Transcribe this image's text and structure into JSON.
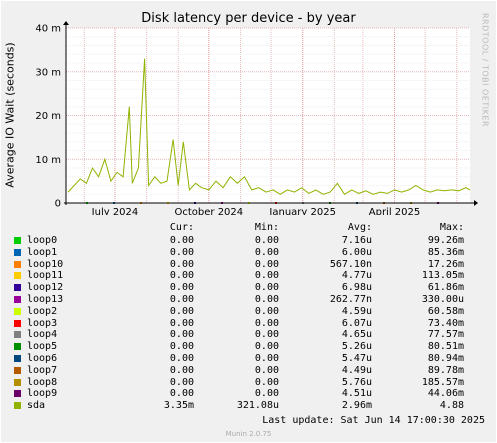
{
  "chart_data": {
    "type": "line",
    "title": "Disk latency per device - by year",
    "ylabel": "Average IO Wait (seconds)",
    "ylim": [
      0,
      0.04
    ],
    "yticks": [
      {
        "value": 0,
        "label": "0"
      },
      {
        "value": 0.01,
        "label": "10 m"
      },
      {
        "value": 0.02,
        "label": "20 m"
      },
      {
        "value": 0.03,
        "label": "30 m"
      },
      {
        "value": 0.04,
        "label": "40 m"
      }
    ],
    "x_range": [
      "2024-05-14",
      "2025-06-14"
    ],
    "xticks": [
      {
        "date": "2024-07-01",
        "label": "July 2024"
      },
      {
        "date": "2024-10-01",
        "label": "October 2024"
      },
      {
        "date": "2025-01-01",
        "label": "January 2025"
      },
      {
        "date": "2025-04-01",
        "label": "April 2025"
      }
    ],
    "grid": true,
    "sda_series": {
      "name": "sda",
      "points": [
        [
          "2024-05-16",
          0.0025
        ],
        [
          "2024-05-22",
          0.004
        ],
        [
          "2024-05-28",
          0.0055
        ],
        [
          "2024-06-03",
          0.0045
        ],
        [
          "2024-06-09",
          0.008
        ],
        [
          "2024-06-15",
          0.006
        ],
        [
          "2024-06-21",
          0.01
        ],
        [
          "2024-06-27",
          0.005
        ],
        [
          "2024-07-03",
          0.007
        ],
        [
          "2024-07-09",
          0.006
        ],
        [
          "2024-07-15",
          0.022
        ],
        [
          "2024-07-18",
          0.0045
        ],
        [
          "2024-07-24",
          0.008
        ],
        [
          "2024-07-30",
          0.033
        ],
        [
          "2024-08-03",
          0.004
        ],
        [
          "2024-08-09",
          0.006
        ],
        [
          "2024-08-15",
          0.0045
        ],
        [
          "2024-08-21",
          0.005
        ],
        [
          "2024-08-27",
          0.0145
        ],
        [
          "2024-09-01",
          0.004
        ],
        [
          "2024-09-06",
          0.014
        ],
        [
          "2024-09-12",
          0.003
        ],
        [
          "2024-09-18",
          0.0045
        ],
        [
          "2024-09-24",
          0.0035
        ],
        [
          "2024-10-01",
          0.003
        ],
        [
          "2024-10-08",
          0.005
        ],
        [
          "2024-10-15",
          0.0035
        ],
        [
          "2024-10-22",
          0.006
        ],
        [
          "2024-10-29",
          0.0045
        ],
        [
          "2024-11-05",
          0.006
        ],
        [
          "2024-11-12",
          0.003
        ],
        [
          "2024-11-19",
          0.0035
        ],
        [
          "2024-11-26",
          0.0025
        ],
        [
          "2024-12-03",
          0.003
        ],
        [
          "2024-12-10",
          0.002
        ],
        [
          "2024-12-17",
          0.003
        ],
        [
          "2024-12-24",
          0.0025
        ],
        [
          "2024-12-31",
          0.0035
        ],
        [
          "2025-01-07",
          0.0022
        ],
        [
          "2025-01-14",
          0.003
        ],
        [
          "2025-01-21",
          0.002
        ],
        [
          "2025-01-28",
          0.0025
        ],
        [
          "2025-02-04",
          0.0045
        ],
        [
          "2025-02-11",
          0.002
        ],
        [
          "2025-02-18",
          0.003
        ],
        [
          "2025-02-25",
          0.0022
        ],
        [
          "2025-03-04",
          0.0028
        ],
        [
          "2025-03-11",
          0.002
        ],
        [
          "2025-03-18",
          0.0025
        ],
        [
          "2025-03-25",
          0.0022
        ],
        [
          "2025-04-01",
          0.003
        ],
        [
          "2025-04-08",
          0.0025
        ],
        [
          "2025-04-15",
          0.003
        ],
        [
          "2025-04-22",
          0.004
        ],
        [
          "2025-04-29",
          0.003
        ],
        [
          "2025-05-06",
          0.0025
        ],
        [
          "2025-05-13",
          0.003
        ],
        [
          "2025-05-20",
          0.0028
        ],
        [
          "2025-05-27",
          0.003
        ],
        [
          "2025-06-03",
          0.0028
        ],
        [
          "2025-06-10",
          0.0035
        ],
        [
          "2025-06-14",
          0.003
        ]
      ]
    },
    "legend": {
      "headers": {
        "cur": "Cur:",
        "min": "Min:",
        "avg": "Avg:",
        "max": "Max:"
      },
      "rows": [
        {
          "name": "loop0",
          "color": "#00cc00",
          "cur": "0.00",
          "min": "0.00",
          "avg": "7.16u",
          "max": "99.26m"
        },
        {
          "name": "loop1",
          "color": "#0066b3",
          "cur": "0.00",
          "min": "0.00",
          "avg": "6.00u",
          "max": "85.36m"
        },
        {
          "name": "loop10",
          "color": "#ff8000",
          "cur": "0.00",
          "min": "0.00",
          "avg": "567.10n",
          "max": "17.26m"
        },
        {
          "name": "loop11",
          "color": "#ffcc00",
          "cur": "0.00",
          "min": "0.00",
          "avg": "4.77u",
          "max": "113.05m"
        },
        {
          "name": "loop12",
          "color": "#330099",
          "cur": "0.00",
          "min": "0.00",
          "avg": "6.98u",
          "max": "61.86m"
        },
        {
          "name": "loop13",
          "color": "#990099",
          "cur": "0.00",
          "min": "0.00",
          "avg": "262.77n",
          "max": "330.00u"
        },
        {
          "name": "loop2",
          "color": "#ccff00",
          "cur": "0.00",
          "min": "0.00",
          "avg": "4.59u",
          "max": "60.58m"
        },
        {
          "name": "loop3",
          "color": "#ff0000",
          "cur": "0.00",
          "min": "0.00",
          "avg": "6.07u",
          "max": "73.40m"
        },
        {
          "name": "loop4",
          "color": "#808080",
          "cur": "0.00",
          "min": "0.00",
          "avg": "4.65u",
          "max": "77.57m"
        },
        {
          "name": "loop5",
          "color": "#008f00",
          "cur": "0.00",
          "min": "0.00",
          "avg": "5.26u",
          "max": "80.51m"
        },
        {
          "name": "loop6",
          "color": "#00487d",
          "cur": "0.00",
          "min": "0.00",
          "avg": "5.47u",
          "max": "80.94m"
        },
        {
          "name": "loop7",
          "color": "#b35a00",
          "cur": "0.00",
          "min": "0.00",
          "avg": "4.49u",
          "max": "89.78m"
        },
        {
          "name": "loop8",
          "color": "#b38f00",
          "cur": "0.00",
          "min": "0.00",
          "avg": "5.76u",
          "max": "185.57m"
        },
        {
          "name": "loop9",
          "color": "#6b006b",
          "cur": "0.00",
          "min": "0.00",
          "avg": "4.51u",
          "max": "44.06m"
        },
        {
          "name": "sda",
          "color": "#8fb300",
          "cur": "3.35m",
          "min": "321.08u",
          "avg": "2.96m",
          "max": "4.88"
        }
      ]
    }
  },
  "footer": {
    "last_update": "Last update: Sat Jun 14 17:00:30 2025",
    "munin_version": "Munin 2.0.75"
  },
  "watermark": "RRDTOOL / TOBI OETIKER"
}
